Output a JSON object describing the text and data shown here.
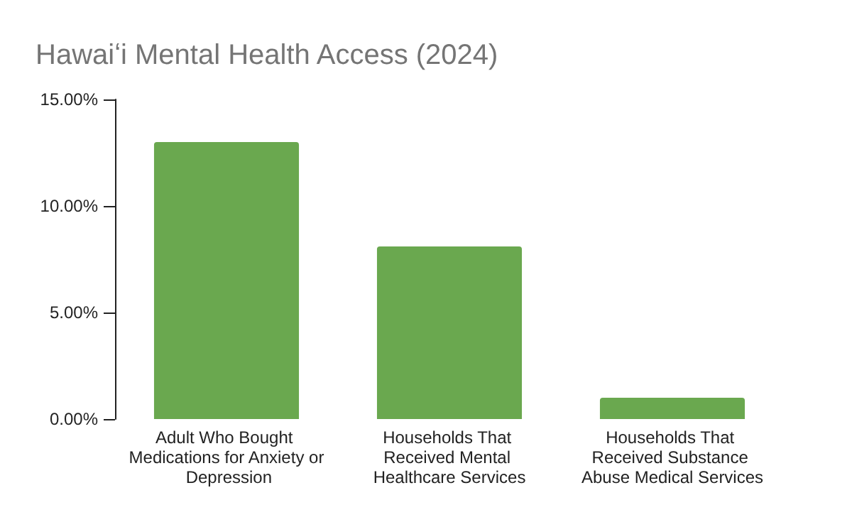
{
  "chart_data": {
    "type": "bar",
    "title": "Hawaiʻi Mental Health Access (2024)",
    "categories": [
      "Adult Who Bought Medications for Anxiety or Depression",
      "Households That Received Mental Healthcare Services",
      "Households That Received Substance Abuse Medical Services"
    ],
    "values": [
      13.0,
      8.1,
      1.0
    ],
    "color": "#6aa84f",
    "ylim": [
      0,
      15
    ],
    "yticks": [
      {
        "value": 0,
        "label": "0.00%"
      },
      {
        "value": 5,
        "label": "5.00%"
      },
      {
        "value": 10,
        "label": "10.00%"
      },
      {
        "value": 15,
        "label": "15.00%"
      }
    ],
    "grid": false
  }
}
